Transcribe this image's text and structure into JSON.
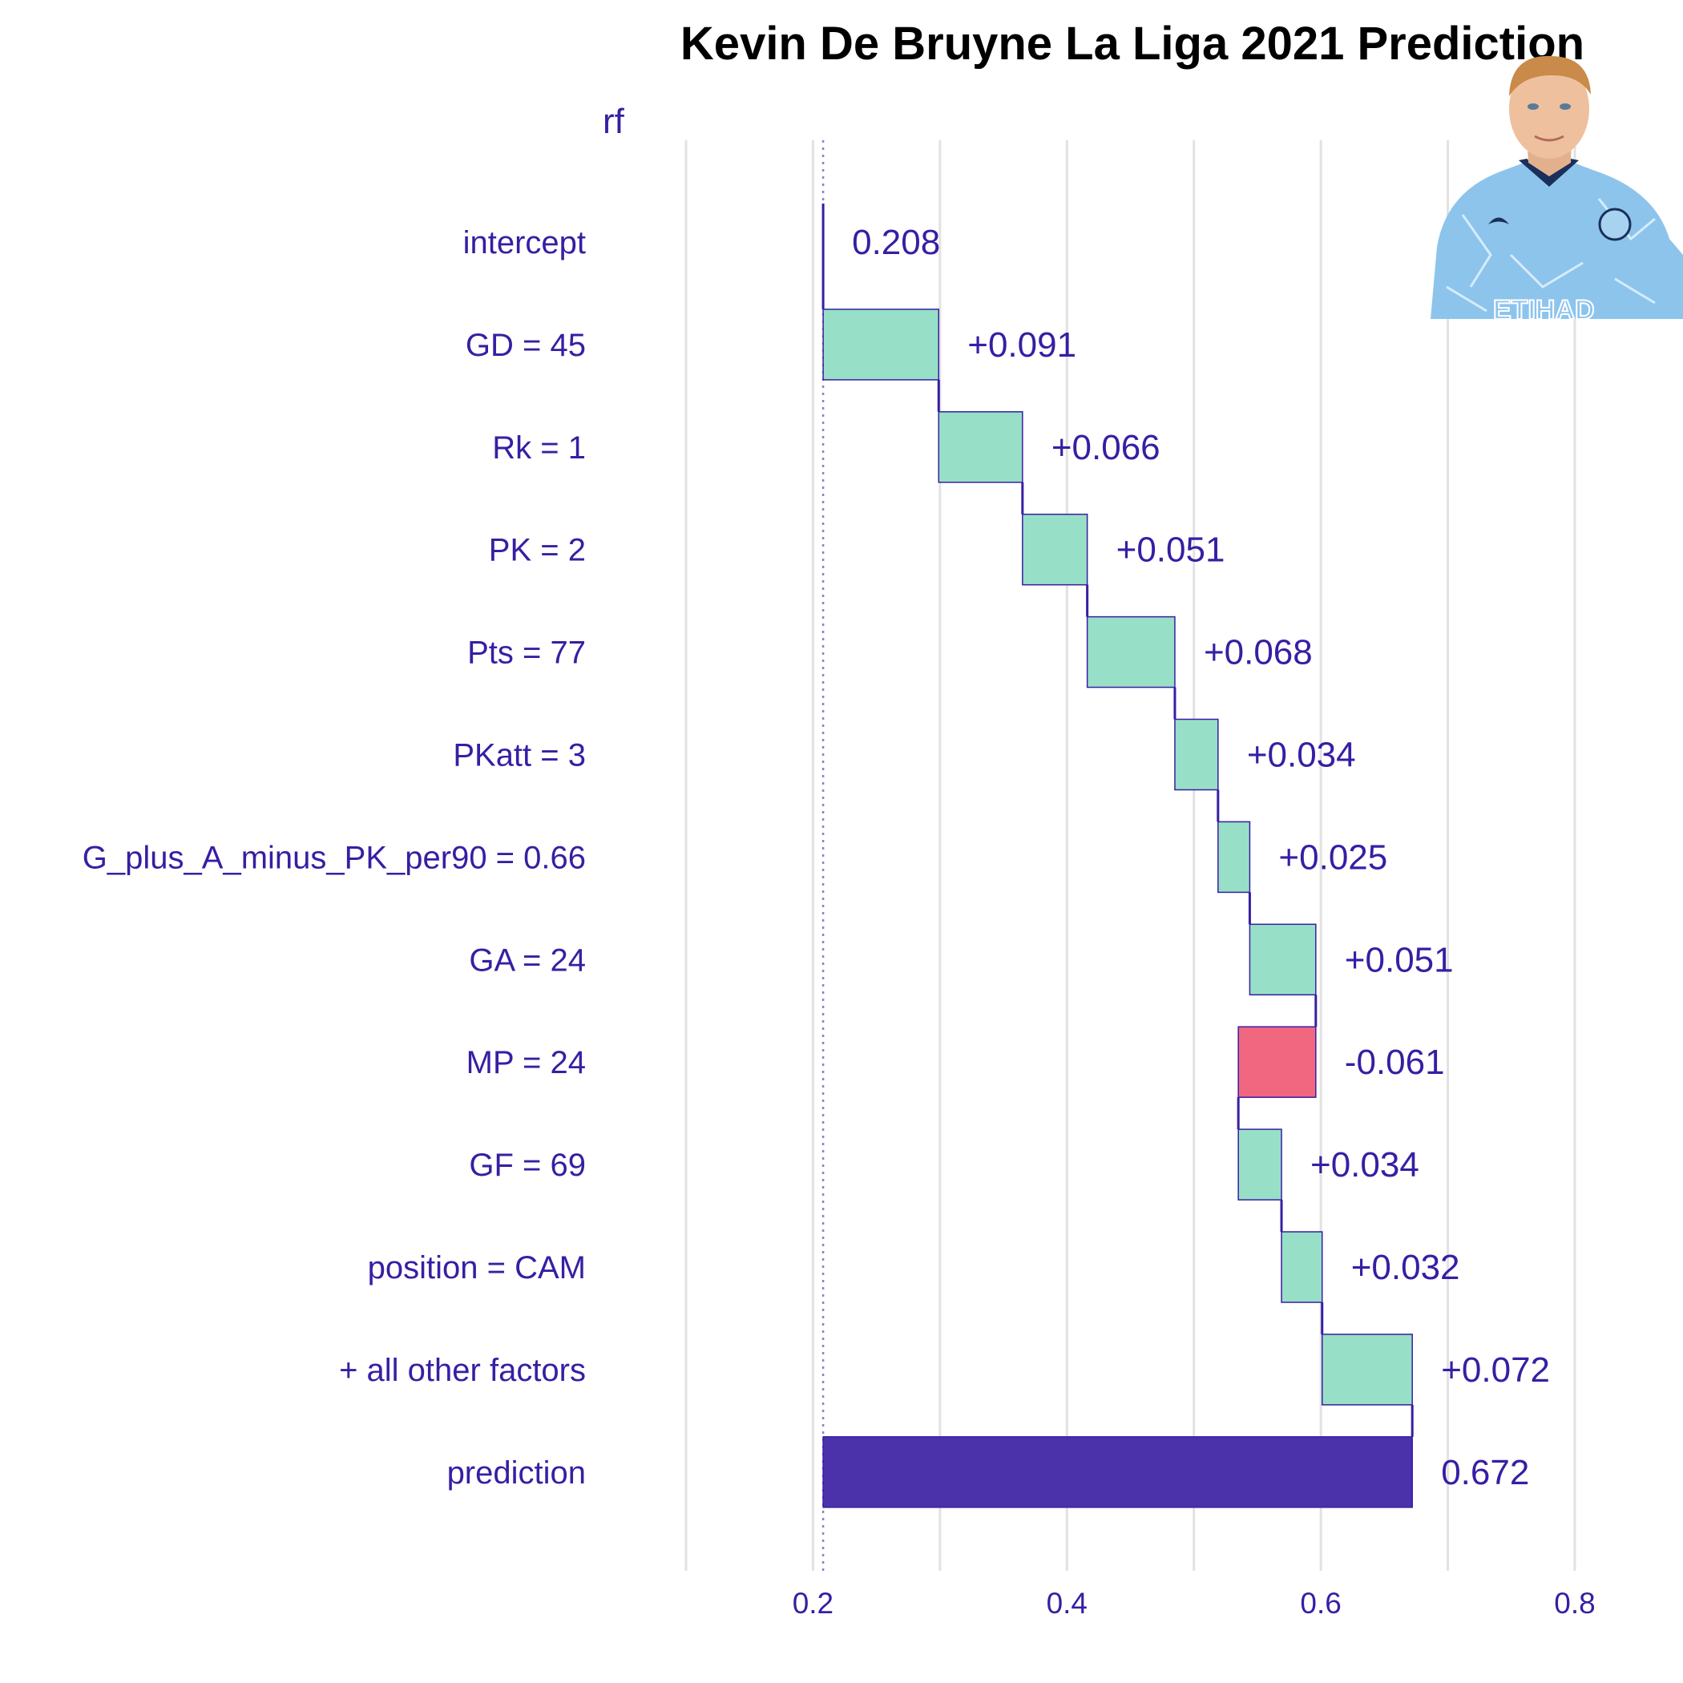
{
  "chart_data": {
    "type": "waterfall",
    "title": "Kevin De Bruyne La Liga 2021 Prediction",
    "model_label": "rf",
    "xlim": [
      0.1,
      0.8
    ],
    "xticks": [
      "0.2",
      "0.4",
      "0.6",
      "0.8"
    ],
    "xtick_values": [
      0.2,
      0.4,
      0.6,
      0.8
    ],
    "baseline": 0.208,
    "rows": [
      {
        "label": "intercept",
        "start": 0.208,
        "end": 0.208,
        "display": "0.208",
        "kind": "intercept"
      },
      {
        "label": "GD = 45",
        "start": 0.208,
        "end": 0.299,
        "display": "+0.091",
        "kind": "positive"
      },
      {
        "label": "Rk = 1",
        "start": 0.299,
        "end": 0.365,
        "display": "+0.066",
        "kind": "positive"
      },
      {
        "label": "PK = 2",
        "start": 0.365,
        "end": 0.416,
        "display": "+0.051",
        "kind": "positive"
      },
      {
        "label": "Pts = 77",
        "start": 0.416,
        "end": 0.485,
        "display": "+0.068",
        "kind": "positive"
      },
      {
        "label": "PKatt = 3",
        "start": 0.485,
        "end": 0.519,
        "display": "+0.034",
        "kind": "positive"
      },
      {
        "label": "G_plus_A_minus_PK_per90 = 0.66",
        "start": 0.519,
        "end": 0.544,
        "display": "+0.025",
        "kind": "positive"
      },
      {
        "label": "GA = 24",
        "start": 0.544,
        "end": 0.596,
        "display": "+0.051",
        "kind": "positive"
      },
      {
        "label": "MP = 24",
        "start": 0.596,
        "end": 0.535,
        "display": "-0.061",
        "kind": "negative"
      },
      {
        "label": "GF = 69",
        "start": 0.535,
        "end": 0.569,
        "display": "+0.034",
        "kind": "positive"
      },
      {
        "label": "position = CAM",
        "start": 0.569,
        "end": 0.601,
        "display": "+0.032",
        "kind": "positive"
      },
      {
        "label": "+ all other factors",
        "start": 0.601,
        "end": 0.672,
        "display": "+0.072",
        "kind": "positive"
      },
      {
        "label": "prediction",
        "start": 0.208,
        "end": 0.672,
        "display": "0.672",
        "kind": "prediction"
      }
    ],
    "colors": {
      "positive": "#97dfc6",
      "negative": "#f0677f",
      "prediction": "#4b31aa",
      "text": "#371ea3",
      "grid": "#e2e2e2",
      "baseline": "#8a82c8"
    }
  },
  "photo": {
    "kit_sponsor": "ETIHAD"
  }
}
